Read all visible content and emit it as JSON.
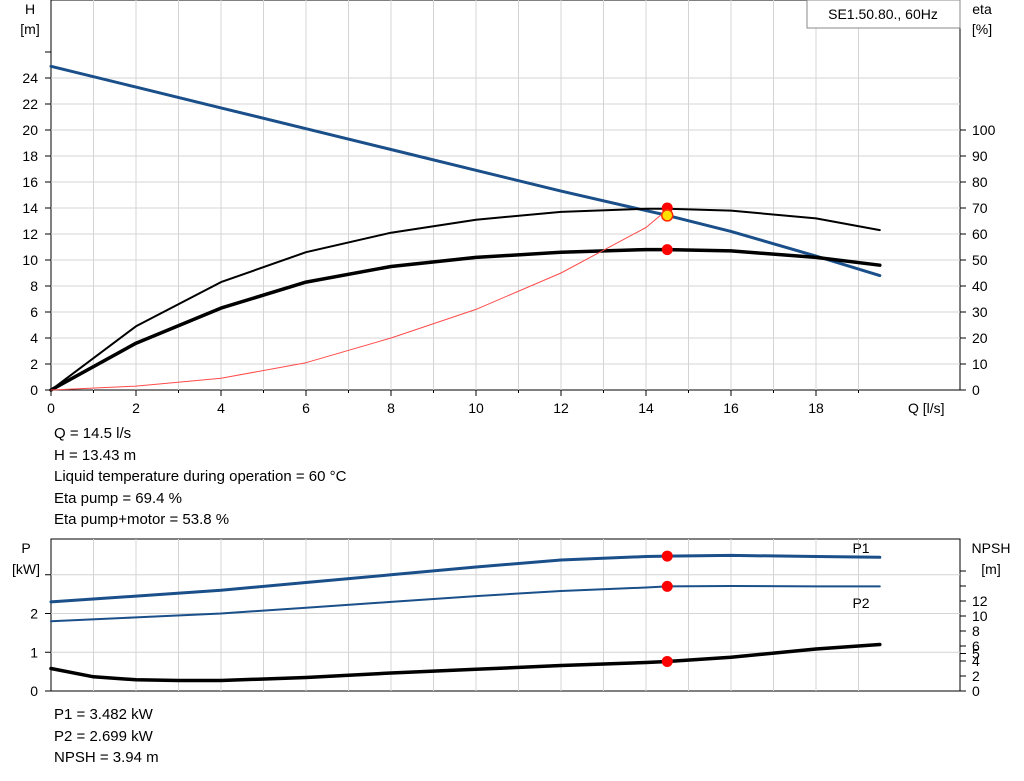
{
  "chart_data": [
    {
      "type": "line",
      "title": "SE1.50.80., 60Hz",
      "xlabel": "Q [l/s]",
      "ylabel_left_name": "H",
      "ylabel_left_unit": "[m]",
      "ylabel_right_name": "eta",
      "ylabel_right_unit": "[%]",
      "xlim": [
        0,
        19.5
      ],
      "ylim_left": [
        0,
        26
      ],
      "ylim_right": [
        0,
        100
      ],
      "x_ticks": [
        "0",
        "2",
        "4",
        "6",
        "8",
        "10",
        "12",
        "14",
        "16",
        "18"
      ],
      "y_left_ticks": [
        "0",
        "2",
        "4",
        "6",
        "8",
        "10",
        "12",
        "14",
        "16",
        "18",
        "20",
        "22",
        "24"
      ],
      "y_right_ticks": [
        "0",
        "10",
        "20",
        "30",
        "40",
        "50",
        "60",
        "70",
        "80",
        "90",
        "100"
      ],
      "grid": true,
      "series": [
        {
          "color": "#1a4f8a",
          "axis": "left",
          "x": [
            0,
            2,
            4,
            6,
            8,
            10,
            12,
            14,
            14.5,
            16,
            18,
            19.5
          ],
          "y": [
            24.9,
            23.3,
            21.7,
            20.1,
            18.5,
            16.9,
            15.3,
            13.8,
            13.43,
            12.2,
            10.3,
            8.8
          ]
        },
        {
          "color": "#000000",
          "axis": "left",
          "x": [
            0,
            2,
            4,
            6,
            8,
            10,
            12,
            14,
            14.5,
            16,
            18,
            19.5
          ],
          "y": [
            0,
            4.9,
            8.3,
            10.6,
            12.1,
            13.1,
            13.7,
            13.95,
            13.95,
            13.8,
            13.2,
            12.3
          ]
        },
        {
          "color": "#000000",
          "axis": "left",
          "x": [
            0,
            2,
            4,
            6,
            8,
            10,
            12,
            14,
            14.5,
            16,
            18,
            19.5
          ],
          "y": [
            0,
            3.6,
            6.3,
            8.3,
            9.5,
            10.2,
            10.6,
            10.8,
            10.8,
            10.7,
            10.2,
            9.6
          ]
        },
        {
          "color": "#ff4b4b",
          "axis": "right",
          "x": [
            0,
            2,
            4,
            6,
            8,
            10,
            12,
            14,
            14.5
          ],
          "y": [
            0,
            1.5,
            4.5,
            10.5,
            20,
            31,
            45,
            62.5,
            69.4
          ]
        }
      ],
      "operating_points": [
        {
          "x": 14.5,
          "y": 14.0,
          "axis": "left",
          "color": "#ff0000"
        },
        {
          "x": 14.5,
          "y": 10.8,
          "axis": "left",
          "color": "#ff0000"
        },
        {
          "x": 14.5,
          "y": 13.43,
          "axis": "left",
          "color": "#ffe000"
        }
      ]
    },
    {
      "type": "line",
      "ylabel_left_name": "P",
      "ylabel_left_unit": "[kW]",
      "ylabel_right_name": "NPSH",
      "ylabel_right_unit": "[m]",
      "xlim": [
        0,
        19.5
      ],
      "ylim_left": [
        0,
        4
      ],
      "ylim_right": [
        0,
        18
      ],
      "y_left_ticks": [
        "0",
        "1",
        "2"
      ],
      "y_right_ticks": [
        "0",
        "2",
        "4",
        "5",
        "6",
        "8",
        "10",
        "12"
      ],
      "series": [
        {
          "name": "P1",
          "color": "#1a4f8a",
          "axis": "left",
          "x": [
            0,
            2,
            4,
            6,
            8,
            10,
            12,
            14,
            14.5,
            16,
            18,
            19.5
          ],
          "y": [
            2.3,
            2.45,
            2.6,
            2.8,
            3.0,
            3.2,
            3.38,
            3.47,
            3.482,
            3.5,
            3.47,
            3.45
          ]
        },
        {
          "name": "P2",
          "color": "#1a4f8a",
          "axis": "left",
          "x": [
            0,
            2,
            4,
            6,
            8,
            10,
            12,
            14,
            14.5,
            16,
            18,
            19.5
          ],
          "y": [
            1.8,
            1.9,
            2.0,
            2.15,
            2.3,
            2.45,
            2.58,
            2.67,
            2.699,
            2.71,
            2.7,
            2.7
          ]
        },
        {
          "color": "#000000",
          "axis": "right",
          "x": [
            0,
            1,
            2,
            3,
            4,
            6,
            8,
            10,
            12,
            14,
            14.5,
            16,
            18,
            19.5
          ],
          "y": [
            3.0,
            1.9,
            1.5,
            1.4,
            1.4,
            1.8,
            2.4,
            2.9,
            3.4,
            3.8,
            3.94,
            4.5,
            5.6,
            6.2
          ]
        }
      ],
      "operating_points": [
        {
          "x": 14.5,
          "y": 3.482,
          "axis": "left",
          "color": "#ff0000"
        },
        {
          "x": 14.5,
          "y": 2.699,
          "axis": "left",
          "color": "#ff0000"
        },
        {
          "x": 14.5,
          "y": 3.94,
          "axis": "right",
          "color": "#ff0000"
        }
      ]
    }
  ],
  "info_top": [
    "Q = 14.5 l/s",
    "H = 13.43 m",
    "Liquid temperature during operation = 60 °C",
    "Eta pump = 69.4 %",
    "Eta pump+motor = 53.8 %"
  ],
  "info_bottom": [
    "P1 = 3.482 kW",
    "P2 = 2.699 kW",
    "NPSH = 3.94 m"
  ]
}
